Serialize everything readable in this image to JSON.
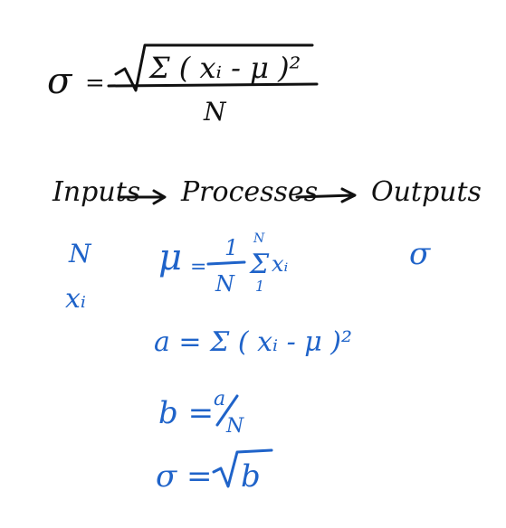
{
  "colors": {
    "black_ink": "#111111",
    "blue_ink": "#1f63c9",
    "background": "#ffffff"
  },
  "formula": {
    "lhs": "σ",
    "equals": "=",
    "numerator": "Σ ( xᵢ - μ )²",
    "denominator": "N"
  },
  "flow": {
    "inputs": "Inputs",
    "processes": "Processes",
    "outputs": "Outputs"
  },
  "inputs_list": {
    "n": "N",
    "xi": "xᵢ"
  },
  "outputs_list": {
    "sigma": "σ"
  },
  "steps": {
    "mu_lhs": "μ",
    "mu_eq": "=",
    "mu_num": "1",
    "mu_den": "N",
    "mu_sum_top": "N",
    "mu_sum": "Σ",
    "mu_sum_bottom": "1",
    "mu_term": "xᵢ",
    "a": "a = Σ ( xᵢ - μ )²",
    "b_lhs": "b =",
    "b_num": "a",
    "b_den": "N",
    "sigma_lhs": "σ =",
    "sigma_rad": "b"
  }
}
